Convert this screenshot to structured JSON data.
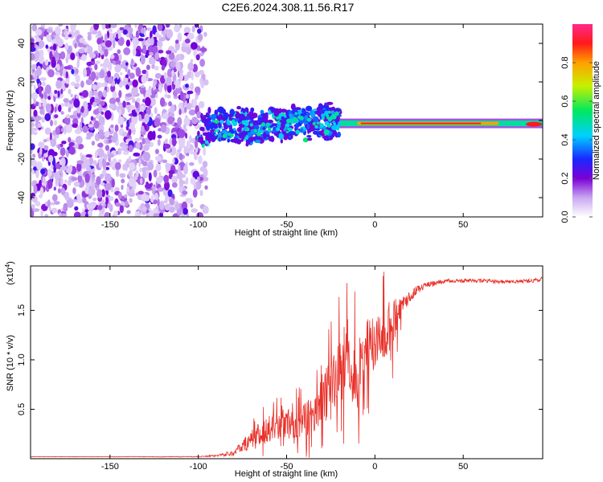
{
  "title": "C2E6.2024.308.11.56.R17",
  "chart_data": [
    {
      "type": "heatmap",
      "name": "spectrogram",
      "xlabel": "Height of straight line (km)",
      "ylabel": "Frequency (Hz)",
      "xlim": [
        -195,
        95
      ],
      "ylim": [
        -50,
        50
      ],
      "xticks": [
        -150,
        -100,
        -50,
        0,
        50
      ],
      "yticks": [
        -40,
        -20,
        0,
        20,
        40
      ],
      "colorbar": {
        "label": "Normalized spectral amplitude",
        "range": [
          0.0,
          1.0
        ],
        "ticks": [
          0.0,
          0.2,
          0.4,
          0.6,
          0.8
        ],
        "tick_labels": [
          "0.0",
          "0.2",
          "0.4",
          "0.6",
          "0.8"
        ]
      },
      "regions": [
        {
          "description": "noise",
          "x": [
            -195,
            -95
          ],
          "f": [
            -50,
            50
          ],
          "amplitude": 0.15
        },
        {
          "description": "scattered signal",
          "x": [
            -100,
            -20
          ],
          "f": [
            -12,
            12
          ],
          "amplitude": 0.3
        },
        {
          "description": "coherent line",
          "x": [
            -20,
            95
          ],
          "f": [
            -3,
            0
          ],
          "amplitude": 0.95
        }
      ]
    },
    {
      "type": "line",
      "name": "snr",
      "xlabel": "Height of straight line (km)",
      "ylabel": "SNR (10 * v/v)",
      "y_scale_label": "(x10",
      "y_scale_exp": "4",
      "y_scale_close": ")",
      "xlim": [
        -195,
        95
      ],
      "ylim": [
        0,
        1.95
      ],
      "xticks": [
        -150,
        -100,
        -50,
        0,
        50
      ],
      "yticks": [
        0.5,
        1.0,
        1.5
      ],
      "ytick_labels": [
        "0.5",
        "1.0",
        "1.5"
      ],
      "series": [
        {
          "name": "SNR",
          "color": "#e8312a",
          "x": [
            -195,
            -150,
            -100,
            -90,
            -80,
            -75,
            -70,
            -65,
            -60,
            -55,
            -50,
            -45,
            -40,
            -35,
            -30,
            -25,
            -20,
            -15,
            -10,
            -5,
            0,
            5,
            10,
            15,
            20,
            25,
            30,
            40,
            50,
            60,
            70,
            80,
            90,
            95
          ],
          "y": [
            0.02,
            0.02,
            0.02,
            0.03,
            0.06,
            0.12,
            0.2,
            0.27,
            0.3,
            0.33,
            0.35,
            0.36,
            0.38,
            0.45,
            0.55,
            0.75,
            0.9,
            1.05,
            0.8,
            1.1,
            1.2,
            1.25,
            1.35,
            1.55,
            1.65,
            1.72,
            1.76,
            1.8,
            1.8,
            1.8,
            1.79,
            1.79,
            1.8,
            1.82
          ],
          "noise_amplitude": [
            0.002,
            0.002,
            0.004,
            0.01,
            0.03,
            0.06,
            0.1,
            0.12,
            0.14,
            0.15,
            0.15,
            0.15,
            0.18,
            0.2,
            0.25,
            0.3,
            0.35,
            0.4,
            0.35,
            0.3,
            0.28,
            0.28,
            0.25,
            0.1,
            0.06,
            0.04,
            0.03,
            0.02,
            0.02,
            0.02,
            0.02,
            0.02,
            0.02,
            0.02
          ]
        }
      ]
    }
  ]
}
